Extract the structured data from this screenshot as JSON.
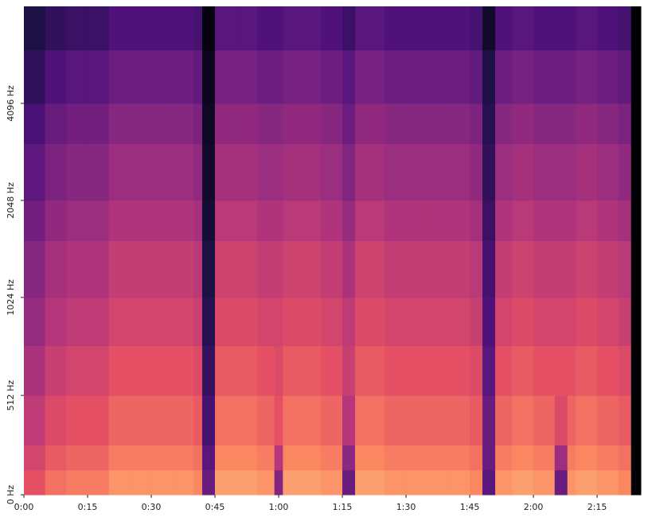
{
  "chart_data": {
    "type": "heatmap",
    "colormap": "magma",
    "yscale": "symlog",
    "xlim": [
      0,
      145.3
    ],
    "ylim": [
      0,
      8192
    ],
    "xticks": [
      {
        "value": 0,
        "label": "0:00"
      },
      {
        "value": 15,
        "label": "0:15"
      },
      {
        "value": 30,
        "label": "0:30"
      },
      {
        "value": 45,
        "label": "0:45"
      },
      {
        "value": 60,
        "label": "1:00"
      },
      {
        "value": 75,
        "label": "1:15"
      },
      {
        "value": 90,
        "label": "1:30"
      },
      {
        "value": 105,
        "label": "1:45"
      },
      {
        "value": 120,
        "label": "2:00"
      },
      {
        "value": 135,
        "label": "2:15"
      }
    ],
    "yticks": [
      {
        "value": 0,
        "label": "0 Hz"
      },
      {
        "value": 512,
        "label": "512 Hz"
      },
      {
        "value": 1024,
        "label": "1024 Hz"
      },
      {
        "value": 2048,
        "label": "2048 Hz"
      },
      {
        "value": 4096,
        "label": "4096 Hz"
      }
    ],
    "xbins": [
      0,
      5,
      10,
      15,
      20,
      25,
      30,
      35,
      40,
      42,
      45,
      50,
      55,
      59,
      61,
      65,
      70,
      75,
      78,
      80,
      85,
      90,
      95,
      100,
      105,
      108,
      111,
      115,
      120,
      125,
      128,
      130,
      135,
      140,
      143,
      145.3
    ],
    "ybins": [
      0,
      128,
      256,
      512,
      768,
      1024,
      1536,
      2048,
      3072,
      4096,
      6000,
      8192
    ],
    "z": [
      [
        -30,
        -24,
        -22,
        -22,
        -18,
        -18,
        -18,
        -18,
        -20,
        -55,
        -16,
        -16,
        -18,
        -50,
        -16,
        -16,
        -18,
        -55,
        -16,
        -16,
        -18,
        -18,
        -18,
        -18,
        -20,
        -58,
        -18,
        -16,
        -18,
        -55,
        -18,
        -16,
        -18,
        -20,
        -80
      ],
      [
        -34,
        -28,
        -26,
        -26,
        -22,
        -22,
        -22,
        -22,
        -24,
        -58,
        -20,
        -20,
        -22,
        -40,
        -20,
        -20,
        -22,
        -48,
        -20,
        -20,
        -22,
        -22,
        -22,
        -22,
        -24,
        -55,
        -22,
        -20,
        -22,
        -45,
        -22,
        -20,
        -22,
        -24,
        -80
      ],
      [
        -38,
        -32,
        -30,
        -30,
        -26,
        -26,
        -26,
        -26,
        -28,
        -62,
        -24,
        -24,
        -26,
        -30,
        -24,
        -24,
        -26,
        -40,
        -24,
        -24,
        -26,
        -26,
        -26,
        -26,
        -28,
        -55,
        -26,
        -24,
        -26,
        -32,
        -26,
        -24,
        -26,
        -28,
        -80
      ],
      [
        -42,
        -36,
        -34,
        -34,
        -30,
        -30,
        -30,
        -30,
        -32,
        -65,
        -28,
        -28,
        -30,
        -32,
        -28,
        -28,
        -30,
        -36,
        -28,
        -28,
        -30,
        -30,
        -30,
        -30,
        -32,
        -58,
        -30,
        -28,
        -30,
        -30,
        -30,
        -28,
        -30,
        -32,
        -80
      ],
      [
        -46,
        -40,
        -38,
        -38,
        -34,
        -34,
        -34,
        -34,
        -36,
        -68,
        -32,
        -32,
        -34,
        -34,
        -32,
        -32,
        -34,
        -38,
        -32,
        -32,
        -34,
        -34,
        -34,
        -34,
        -36,
        -60,
        -34,
        -32,
        -34,
        -34,
        -34,
        -32,
        -34,
        -36,
        -80
      ],
      [
        -49,
        -43,
        -41,
        -41,
        -37,
        -37,
        -37,
        -37,
        -39,
        -70,
        -35,
        -35,
        -37,
        -37,
        -35,
        -35,
        -37,
        -42,
        -35,
        -35,
        -37,
        -37,
        -37,
        -37,
        -39,
        -62,
        -37,
        -35,
        -37,
        -37,
        -37,
        -35,
        -37,
        -39,
        -80
      ],
      [
        -53,
        -47,
        -45,
        -45,
        -41,
        -41,
        -41,
        -41,
        -43,
        -72,
        -39,
        -39,
        -41,
        -41,
        -39,
        -39,
        -41,
        -46,
        -39,
        -39,
        -41,
        -41,
        -41,
        -41,
        -43,
        -64,
        -41,
        -39,
        -41,
        -41,
        -41,
        -39,
        -41,
        -43,
        -80
      ],
      [
        -57,
        -51,
        -49,
        -49,
        -45,
        -45,
        -45,
        -45,
        -47,
        -74,
        -43,
        -43,
        -45,
        -45,
        -43,
        -43,
        -45,
        -50,
        -43,
        -43,
        -45,
        -45,
        -45,
        -45,
        -47,
        -66,
        -45,
        -43,
        -45,
        -45,
        -45,
        -43,
        -45,
        -47,
        -80
      ],
      [
        -61,
        -55,
        -53,
        -53,
        -49,
        -49,
        -49,
        -49,
        -51,
        -75,
        -47,
        -47,
        -49,
        -49,
        -47,
        -47,
        -49,
        -54,
        -47,
        -47,
        -49,
        -49,
        -49,
        -49,
        -51,
        -68,
        -49,
        -47,
        -49,
        -49,
        -49,
        -47,
        -49,
        -51,
        -80
      ],
      [
        -66,
        -60,
        -58,
        -58,
        -54,
        -54,
        -54,
        -54,
        -56,
        -76,
        -52,
        -52,
        -54,
        -54,
        -52,
        -52,
        -54,
        -58,
        -52,
        -52,
        -54,
        -54,
        -54,
        -54,
        -56,
        -70,
        -54,
        -52,
        -54,
        -54,
        -54,
        -52,
        -54,
        -56,
        -80
      ],
      [
        -70,
        -66,
        -64,
        -64,
        -60,
        -60,
        -60,
        -60,
        -62,
        -78,
        -58,
        -58,
        -60,
        -60,
        -58,
        -58,
        -60,
        -64,
        -58,
        -58,
        -60,
        -60,
        -60,
        -60,
        -62,
        -74,
        -60,
        -58,
        -60,
        -60,
        -60,
        -58,
        -60,
        -62,
        -80
      ]
    ]
  }
}
